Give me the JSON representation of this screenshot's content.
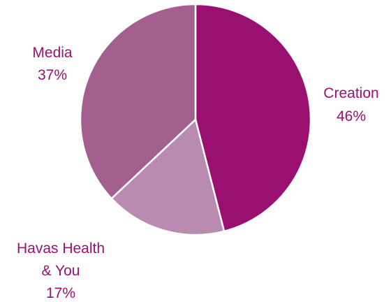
{
  "chart_data": {
    "type": "pie",
    "start_angle_deg": 0,
    "direction": "clockwise",
    "slices": [
      {
        "name": "Creation",
        "value_label": "46%",
        "value": 46,
        "color": "#9a1070",
        "text_color": "#9a1070"
      },
      {
        "name": "Havas Health & You",
        "value_label": "17%",
        "value": 17,
        "color": "#b98bb1",
        "text_color": "#9a1070"
      },
      {
        "name": "Media",
        "value_label": "37%",
        "value": 37,
        "color": "#a35f8e",
        "text_color": "#9a1070"
      }
    ]
  }
}
